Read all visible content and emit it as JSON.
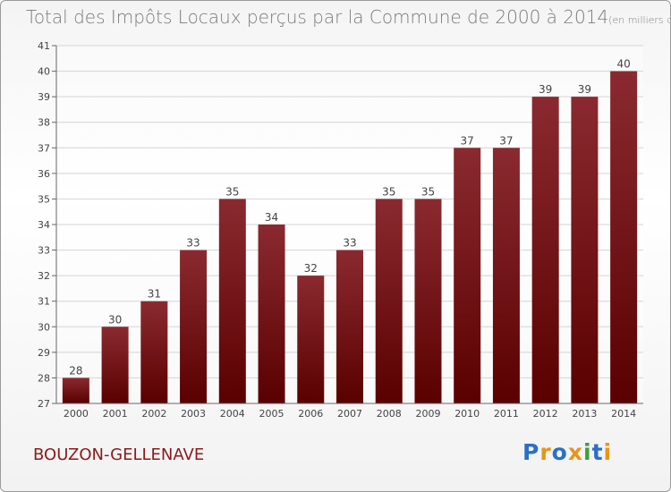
{
  "header": {
    "title": "Total des Impôts Locaux perçus par la Commune de 2000 à 2014",
    "unit": "(en milliers d'€)"
  },
  "footer": {
    "commune": "BOUZON-GELLENAVE",
    "brand_letters": [
      "P",
      "r",
      "o",
      "x",
      "i",
      "t",
      "i"
    ],
    "brand_colors": [
      "#2b6fc8",
      "#e7961a",
      "#2b6fc8",
      "#e7961a",
      "#3aa23a",
      "#2b6fc8",
      "#e7961a"
    ]
  },
  "chart_data": {
    "type": "bar",
    "title": "Total des Impôts Locaux perçus par la Commune de 2000 à 2014",
    "xlabel": "",
    "ylabel": "",
    "ylim": [
      27,
      41
    ],
    "yticks": [
      27,
      28,
      29,
      30,
      31,
      32,
      33,
      34,
      35,
      36,
      37,
      38,
      39,
      40,
      41
    ],
    "categories": [
      "2000",
      "2001",
      "2002",
      "2003",
      "2004",
      "2005",
      "2006",
      "2007",
      "2008",
      "2009",
      "2010",
      "2011",
      "2012",
      "2013",
      "2014"
    ],
    "values": [
      28,
      30,
      31,
      33,
      35,
      34,
      32,
      33,
      35,
      35,
      37,
      37,
      39,
      39,
      40
    ],
    "bar_color_top": "#8a2a30",
    "bar_color_bottom": "#5a0000",
    "grid": true
  }
}
